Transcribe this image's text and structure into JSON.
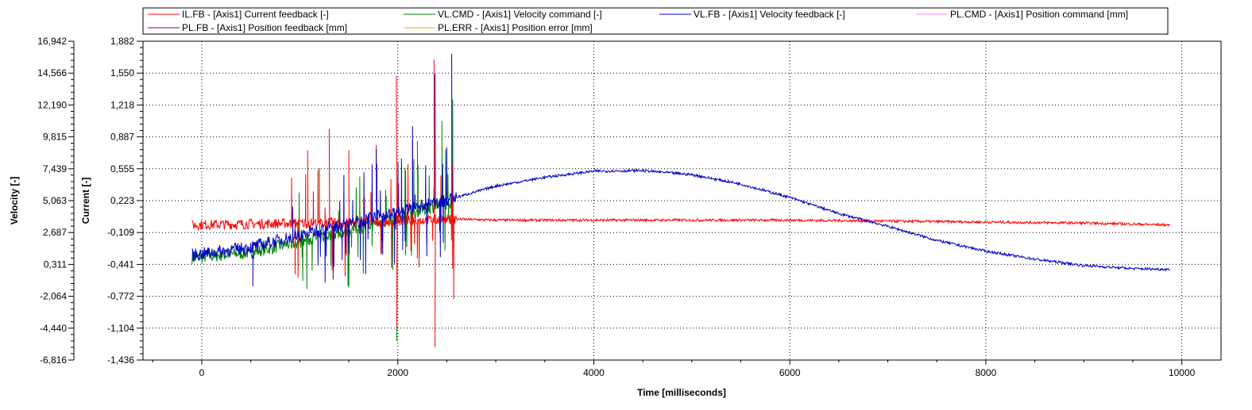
{
  "chart_data": {
    "type": "line",
    "xlabel": "Time [milliseconds]",
    "x_ticks": [
      "0",
      "2000",
      "4000",
      "6000",
      "8000",
      "10000"
    ],
    "xlim": [
      -600,
      10400
    ],
    "grid": true,
    "legend_position": "top",
    "axes": [
      {
        "id": "velocity",
        "label": "Velocity [-]",
        "ylim": [
          -6816,
          16942
        ],
        "ticks": [
          "16,942",
          "14,566",
          "12,190",
          "9,815",
          "7,439",
          "5,063",
          "2,687",
          "0,311",
          "-2,064",
          "-4,440",
          "-6,816"
        ]
      },
      {
        "id": "current",
        "label": "Current [-]",
        "ylim": [
          -1.436,
          1.882
        ],
        "ticks": [
          "1,882",
          "1,550",
          "1,218",
          "0,887",
          "0,555",
          "0,223",
          "-0,109",
          "-0,441",
          "-0,772",
          "-1,104",
          "-1,436"
        ]
      }
    ],
    "legend": [
      {
        "name": "IL.FB - [Axis1] Current feedback [-]",
        "color": "#ff0000"
      },
      {
        "name": "VL.CMD - [Axis1] Velocity command [-]",
        "color": "#008000"
      },
      {
        "name": "VL.FB - [Axis1] Velocity feedback [-]",
        "color": "#0000c8"
      },
      {
        "name": "PL.CMD - [Axis1] Position command [mm]",
        "color": "#ff80ff"
      },
      {
        "name": "PL.FB - [Axis1] Position feedback [mm]",
        "color": "#800080"
      },
      {
        "name": "PL.ERR - [Axis1] Position error [mm]",
        "color": "#ffa500"
      }
    ],
    "series": [
      {
        "name": "IL.FB - [Axis1] Current feedback [-]",
        "axis": "current",
        "color": "#ff0000",
        "x": [
          -100,
          500,
          1000,
          1500,
          1800,
          2000,
          2300,
          2600,
          3000,
          4000,
          5000,
          6000,
          7000,
          8000,
          9000,
          9880
        ],
        "y": [
          -0.03,
          -0.02,
          -0.01,
          -0.01,
          0.0,
          0.01,
          0.02,
          0.03,
          0.02,
          0.02,
          0.02,
          0.02,
          0.01,
          0.0,
          -0.01,
          -0.03
        ],
        "spikes": [
          {
            "x": 1080,
            "y": 0.75
          },
          {
            "x": 1300,
            "y": 0.97
          },
          {
            "x": 1330,
            "y": -0.5
          },
          {
            "x": 1500,
            "y": 0.75
          },
          {
            "x": 1780,
            "y": 0.8
          },
          {
            "x": 1985,
            "y": 1.52
          },
          {
            "x": 1990,
            "y": -1.1
          },
          {
            "x": 2150,
            "y": 0.85
          },
          {
            "x": 2370,
            "y": 1.69
          },
          {
            "x": 2380,
            "y": -1.3
          },
          {
            "x": 2560,
            "y": 0.6
          },
          {
            "x": 2570,
            "y": -0.8
          }
        ]
      },
      {
        "name": "VL.CMD - [Axis1] Velocity command [-]",
        "axis": "velocity",
        "color": "#008000",
        "x": [
          -100,
          500,
          1000,
          1500,
          2000,
          2300,
          2570
        ],
        "y": [
          800,
          1200,
          2000,
          2800,
          3800,
          4500,
          5000
        ],
        "spikes": [
          {
            "x": 1200,
            "y": 7500
          },
          {
            "x": 1500,
            "y": -1400
          },
          {
            "x": 1990,
            "y": -5400
          },
          {
            "x": 2200,
            "y": 9500
          },
          {
            "x": 2450,
            "y": 11000
          },
          {
            "x": 2560,
            "y": 12600
          }
        ]
      },
      {
        "name": "VL.FB - [Axis1] Velocity feedback [-]",
        "axis": "velocity",
        "color": "#0000c8",
        "x": [
          -100,
          500,
          1000,
          1500,
          2000,
          2500,
          3000,
          3500,
          4000,
          4500,
          5000,
          5500,
          6000,
          6500,
          7000,
          7500,
          8000,
          8500,
          9000,
          9500,
          9880
        ],
        "y": [
          1000,
          1600,
          2500,
          3400,
          4200,
          5100,
          6150,
          6800,
          7260,
          7300,
          7000,
          6300,
          5300,
          4100,
          3150,
          2100,
          1300,
          700,
          230,
          0,
          -60
        ],
        "spikes": [
          {
            "x": 520,
            "y": -1300
          },
          {
            "x": 1340,
            "y": -800
          },
          {
            "x": 1780,
            "y": 8900
          },
          {
            "x": 2150,
            "y": 10600
          },
          {
            "x": 2380,
            "y": 14500
          },
          {
            "x": 2550,
            "y": 16000
          }
        ]
      }
    ]
  }
}
